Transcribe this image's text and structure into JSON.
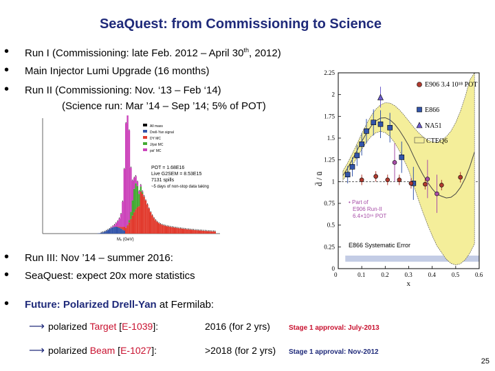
{
  "title": "SeaQuest: from Commissioning to Science",
  "bullets_top": [
    {
      "text": "Run I (Commissioning: late Feb. 2012 – April 30",
      "sup": "th",
      "tail": ", 2012)"
    },
    {
      "text": "Main Injector Lumi Upgrade (16 months)"
    },
    {
      "text": "Run II (Commissioning: Nov. ‘13 – Feb ‘14)"
    }
  ],
  "run2_science": "(Science run: Mar ’14 – Sep ’14; 5% of POT)",
  "bullets_bottom": [
    "Run III: Nov ’14 – summer 2016:",
    "SeaQuest: expect 20x more statistics"
  ],
  "future": {
    "bold": "Future: Polarized Drell-Yan",
    "rest": " at Fermilab:"
  },
  "sub_items": [
    {
      "pre": "polarized ",
      "item": "Target",
      "bracket_open": " [",
      "code": "E-1039",
      "bracket_close": "]:",
      "duration": "2016 (for 2 yrs)",
      "approval": "Stage 1 approval: July-2013"
    },
    {
      "pre": "polarized ",
      "item": "Beam",
      "bracket_open": " [",
      "code": "E-1027",
      "bracket_close": "]:",
      "duration": ">2018 (for 2 yrs)",
      "approval": "Stage 1 approval: Nov-2012"
    }
  ],
  "page_number": "25",
  "histogram": {
    "legend": [
      "All mass",
      "Drell-Yan signal",
      "DY MC",
      "J/psi MC",
      "psi' MC"
    ],
    "stats": [
      "POT = 1.68E16",
      "Live G2SEM = 8.53E15",
      "7131 spills",
      "~5 days of non-stop data taking"
    ],
    "xlabel": "Mₓ (GeV)"
  },
  "colors": {
    "title": "#1f2a7a",
    "accent_red": "#c8102e",
    "magenta": "#cc44bb",
    "green": "#44aa33",
    "red": "#e23b2e",
    "blue": "#3355aa",
    "yellow_band": "#f4ee9a"
  },
  "chart_data": {
    "type": "scatter",
    "ylabel": "d̄ / ū",
    "xlabel": "x",
    "xlim": [
      0,
      0.6
    ],
    "ylim": [
      0,
      2.25
    ],
    "x_ticks": [
      "0",
      "0.1",
      "0.2",
      "0.3",
      "0.4",
      "0.5",
      "0.6"
    ],
    "y_ticks": [
      "0",
      "0.25",
      "0.5",
      "0.75",
      "1",
      "1.25",
      "1.5",
      "1.75",
      "2",
      "2.25"
    ],
    "legend": [
      "E906 3.4 10¹⁸ POT",
      "E866",
      "NA51",
      "CTEQ6"
    ],
    "annotation": [
      "• Part of",
      "E906 Run-II",
      "6.4×10¹⁶ POT"
    ],
    "systematic_label": "E866 Systematic Error",
    "series": [
      {
        "name": "E866",
        "x": [
          0.04,
          0.06,
          0.08,
          0.1,
          0.12,
          0.15,
          0.18,
          0.22,
          0.27,
          0.32
        ],
        "y": [
          1.08,
          1.17,
          1.3,
          1.43,
          1.58,
          1.68,
          1.66,
          1.62,
          1.28,
          0.98
        ]
      },
      {
        "name": "NA51",
        "x": [
          0.18
        ],
        "y": [
          1.97
        ]
      },
      {
        "name": "E906",
        "x": [
          0.1,
          0.16,
          0.21,
          0.26,
          0.31,
          0.37,
          0.44,
          0.52
        ],
        "y": [
          1.02,
          1.06,
          1.02,
          1.02,
          0.98,
          0.97,
          0.96,
          1.05
        ]
      },
      {
        "name": "E906 Run-II",
        "x": [
          0.24,
          0.38,
          0.42
        ],
        "y": [
          1.22,
          1.03,
          0.86
        ]
      }
    ]
  }
}
